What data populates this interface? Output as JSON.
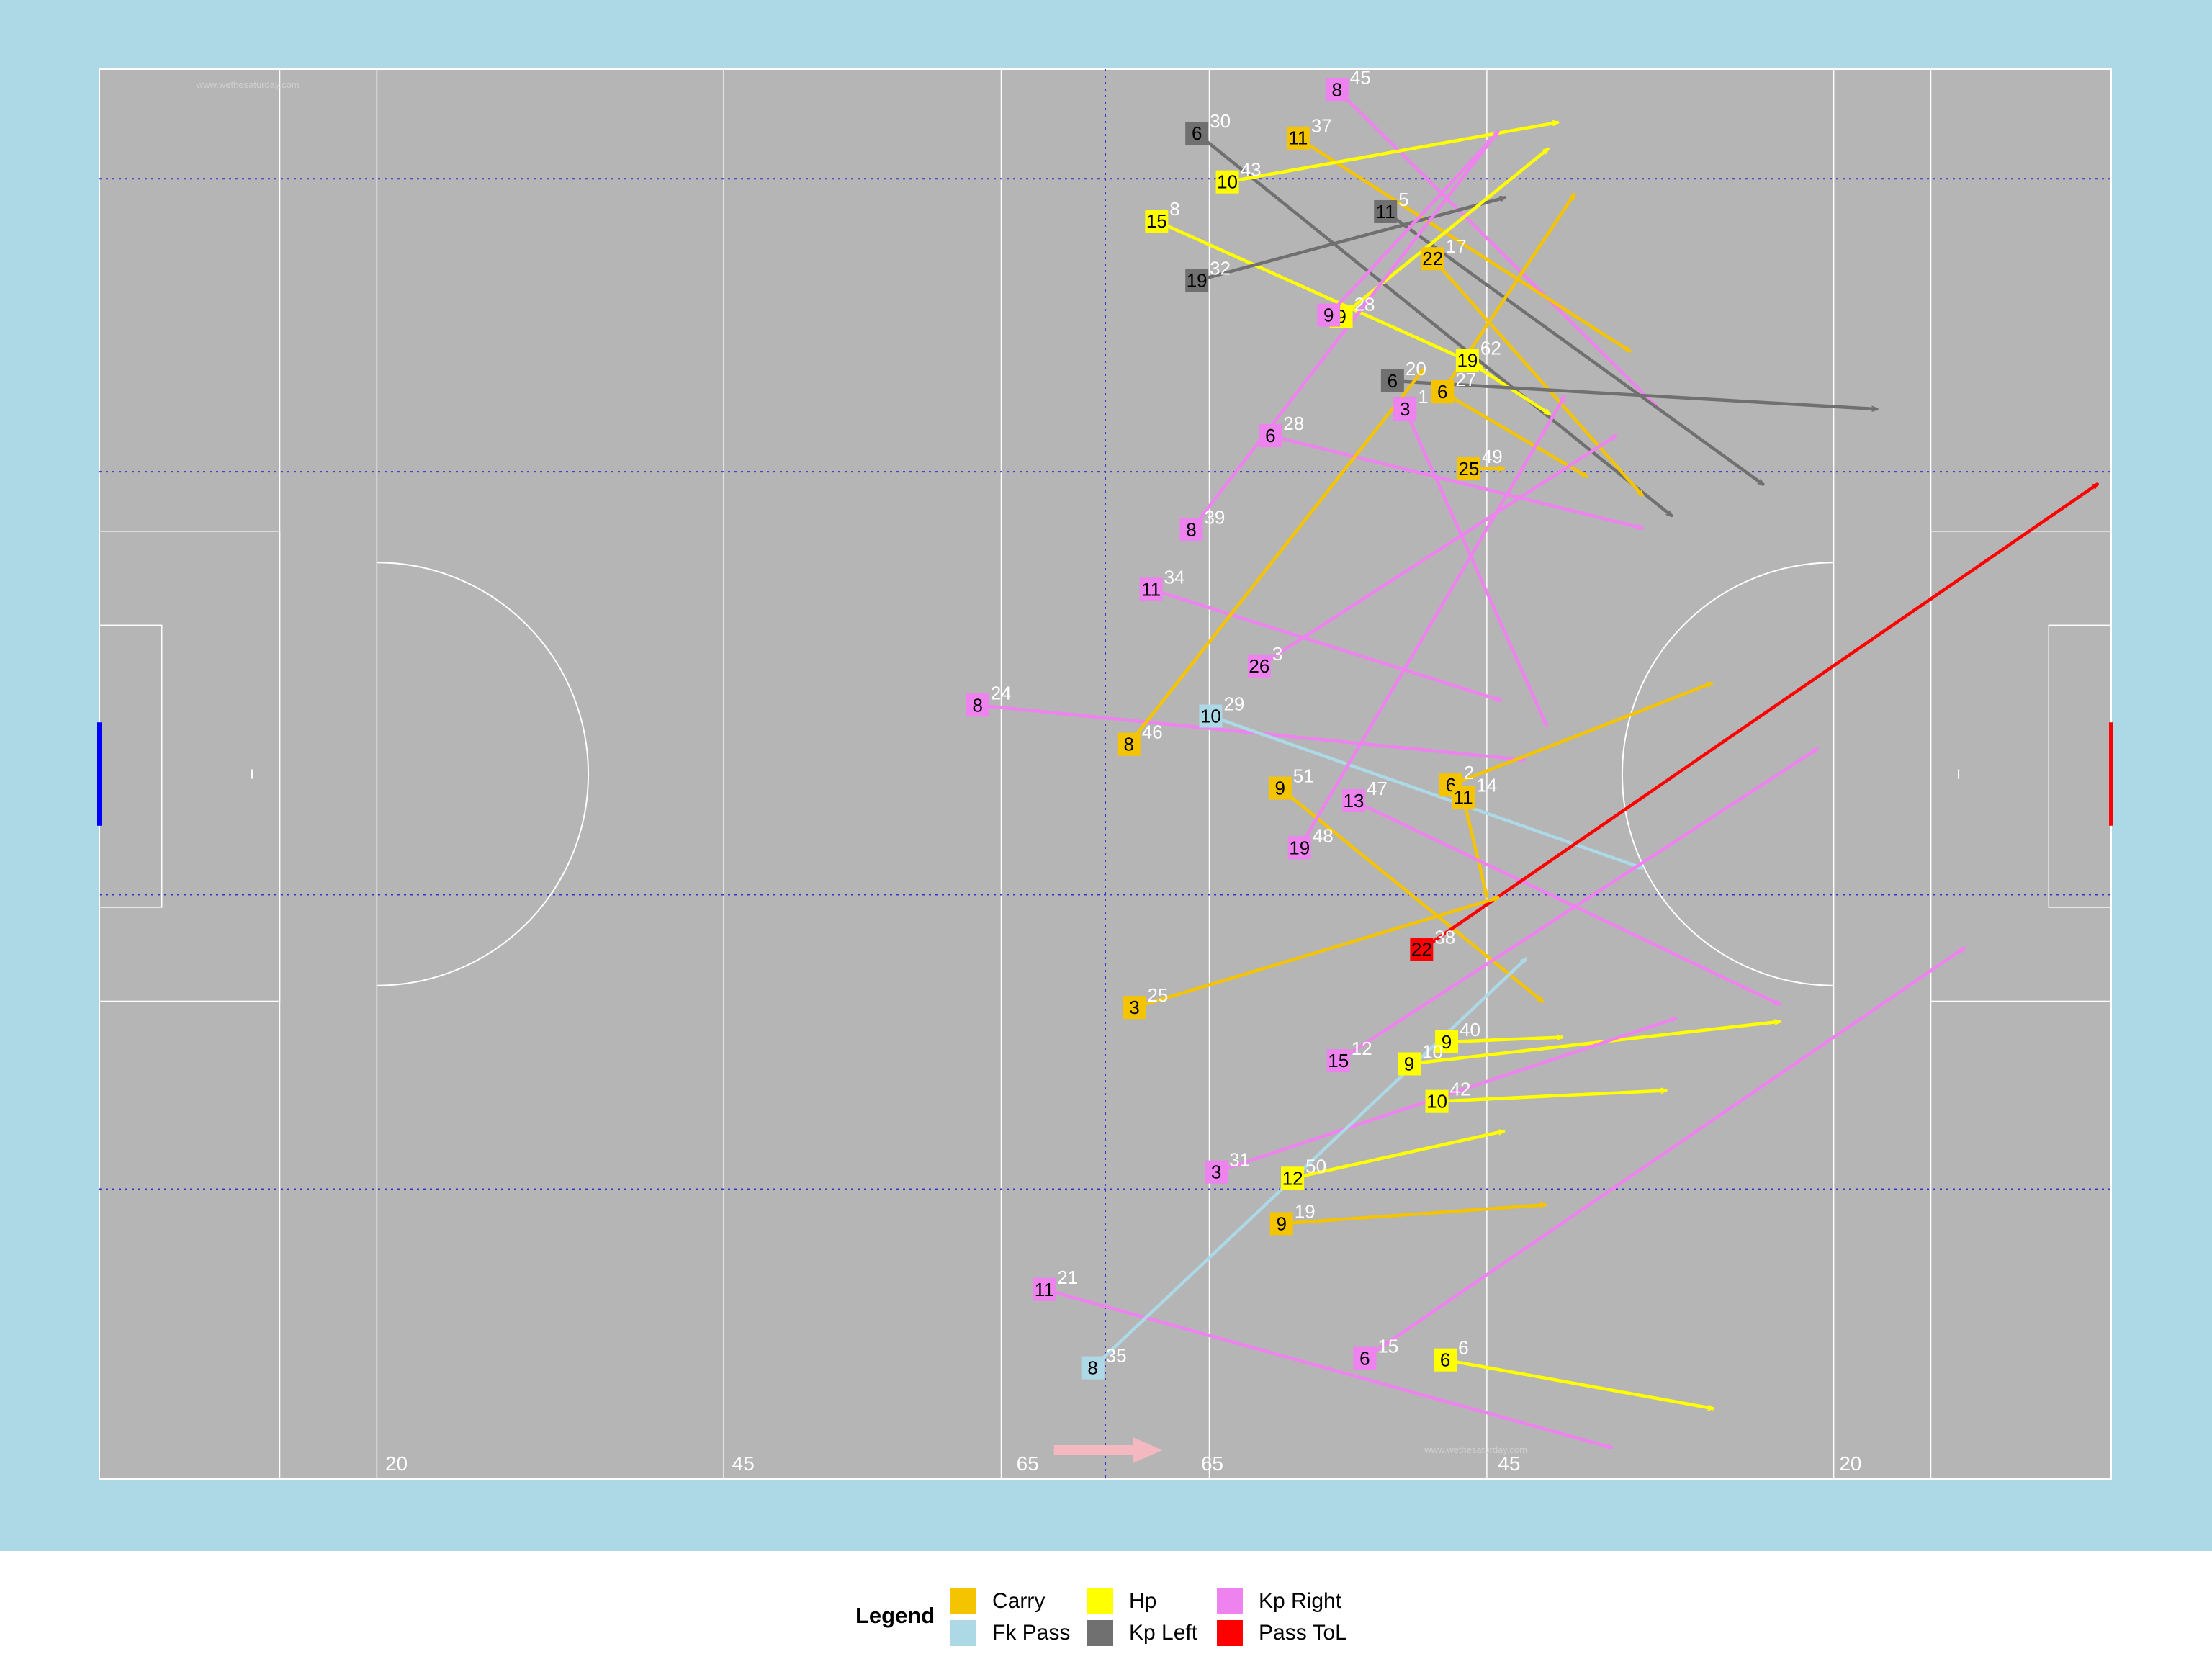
{
  "pitch": {
    "colors": {
      "background": "#add8e6",
      "field": "#b5b5b5",
      "lines": "#ffffff",
      "dotted": "#3333cc",
      "left_goal": "#0000ff",
      "right_goal": "#ff0000",
      "direction_arrow": "#f4b8c0"
    },
    "watermarks": [
      "www.wethesaturday.com",
      "www.wethesaturday.com"
    ],
    "distance_labels": [
      "20",
      "45",
      "65",
      "65",
      "45",
      "20"
    ]
  },
  "legend": {
    "title": "Legend",
    "items": [
      {
        "key": "carry",
        "label": "Carry",
        "color": "#f5c400"
      },
      {
        "key": "fk_pass",
        "label": "Fk Pass",
        "color": "#add8e6"
      },
      {
        "key": "hp",
        "label": "Hp",
        "color": "#ffff00"
      },
      {
        "key": "kp_left",
        "label": "Kp Left",
        "color": "#707070"
      },
      {
        "key": "kp_right",
        "label": "Kp Right",
        "color": "#ee82ee"
      },
      {
        "key": "pass_tol",
        "label": "Pass ToL",
        "color": "#ff0000"
      }
    ]
  },
  "chart_data": {
    "type": "scatter",
    "x_range": [
      0,
      145
    ],
    "y_range": [
      0,
      90
    ],
    "note_units": "pitch metres",
    "events": [
      {
        "type": "kp_right",
        "player": "8",
        "label": "45",
        "start": [
          89.2,
          88.7
        ],
        "end": [
          112.3,
          68.4
        ]
      },
      {
        "type": "kp_left",
        "player": "6",
        "label": "30",
        "start": [
          79.1,
          85.9
        ],
        "end": [
          113.3,
          61.5
        ]
      },
      {
        "type": "carry",
        "player": "11",
        "label": "37",
        "start": [
          86.4,
          85.6
        ],
        "end": [
          110.3,
          72.0
        ]
      },
      {
        "type": "hp",
        "player": "10",
        "label": "43",
        "start": [
          81.3,
          82.8
        ],
        "end": [
          105.1,
          86.6
        ]
      },
      {
        "type": "hp",
        "player": "15",
        "label": "8",
        "start": [
          76.2,
          80.3
        ],
        "end": [
          99.6,
          71.0
        ]
      },
      {
        "type": "kp_left",
        "player": "11",
        "label": "5",
        "start": [
          92.7,
          80.9
        ],
        "end": [
          119.9,
          63.5
        ]
      },
      {
        "type": "carry",
        "player": "22",
        "label": "17",
        "start": [
          96.1,
          77.9
        ],
        "end": [
          111.2,
          62.8
        ]
      },
      {
        "type": "kp_left",
        "player": "19",
        "label": "32",
        "start": [
          79.1,
          76.5
        ],
        "end": [
          101.3,
          81.8
        ]
      },
      {
        "type": "hp",
        "player": "9",
        "label": "28",
        "start": [
          89.5,
          74.2
        ],
        "end": [
          104.4,
          84.9
        ]
      },
      {
        "type": "kp_right",
        "player": "9",
        "label": "",
        "start": [
          88.6,
          74.3
        ],
        "end": [
          100.3,
          85.5
        ]
      },
      {
        "type": "hp",
        "player": "19",
        "label": "62",
        "start": [
          98.6,
          71.4
        ],
        "end": [
          104.5,
          68.0
        ]
      },
      {
        "type": "kp_left",
        "player": "6",
        "label": "20",
        "start": [
          93.2,
          70.1
        ],
        "end": [
          128.1,
          68.3
        ]
      },
      {
        "type": "carry",
        "player": "6",
        "label": "27",
        "start": [
          96.8,
          69.4
        ],
        "end": [
          107.2,
          64.0
        ]
      },
      {
        "type": "carry",
        "player": "6",
        "label": "",
        "start": [
          96.8,
          69.4
        ],
        "end": [
          106.3,
          82.0
        ]
      },
      {
        "type": "kp_right",
        "player": "3",
        "label": "1",
        "start": [
          94.1,
          68.3
        ],
        "end": [
          104.3,
          48.1
        ]
      },
      {
        "type": "kp_right",
        "player": "6",
        "label": "28",
        "start": [
          84.4,
          66.6
        ],
        "end": [
          111.2,
          60.7
        ]
      },
      {
        "type": "carry",
        "player": "25",
        "label": "49",
        "start": [
          98.7,
          64.5
        ],
        "end": [
          101.2,
          64.5
        ]
      },
      {
        "type": "kp_right",
        "player": "8",
        "label": "39",
        "start": [
          78.7,
          60.6
        ],
        "end": [
          100.8,
          86.0
        ]
      },
      {
        "type": "kp_right",
        "player": "11",
        "label": "34",
        "start": [
          75.8,
          56.8
        ],
        "end": [
          101.0,
          49.7
        ]
      },
      {
        "type": "kp_right",
        "player": "26",
        "label": "3",
        "start": [
          83.6,
          51.9
        ],
        "end": [
          109.3,
          66.6
        ]
      },
      {
        "type": "kp_right",
        "player": "8",
        "label": "24",
        "start": [
          63.3,
          49.4
        ],
        "end": [
          102.7,
          45.9
        ]
      },
      {
        "type": "carry",
        "player": "8",
        "label": "46",
        "start": [
          74.2,
          46.9
        ],
        "end": [
          95.4,
          70.8
        ]
      },
      {
        "type": "fk_pass",
        "player": "10",
        "label": "29",
        "start": [
          80.1,
          48.7
        ],
        "end": [
          111.2,
          39.0
        ]
      },
      {
        "type": "carry",
        "player": "6",
        "label": "2",
        "start": [
          97.4,
          44.3
        ],
        "end": [
          116.2,
          50.8
        ]
      },
      {
        "type": "carry",
        "player": "11",
        "label": "14",
        "start": [
          98.3,
          43.5
        ],
        "end": [
          100.0,
          37.2
        ]
      },
      {
        "type": "carry",
        "player": "9",
        "label": "51",
        "start": [
          85.1,
          44.1
        ],
        "end": [
          104.0,
          30.5
        ]
      },
      {
        "type": "kp_right",
        "player": "13",
        "label": "47",
        "start": [
          90.4,
          43.3
        ],
        "end": [
          121.1,
          30.3
        ]
      },
      {
        "type": "kp_right",
        "player": "19",
        "label": "48",
        "start": [
          86.5,
          40.3
        ],
        "end": [
          105.6,
          69.1
        ]
      },
      {
        "type": "pass_tol",
        "player": "22",
        "label": "38",
        "start": [
          95.3,
          33.8
        ],
        "end": [
          144.0,
          63.5
        ]
      },
      {
        "type": "carry",
        "player": "3",
        "label": "25",
        "start": [
          74.6,
          30.1
        ],
        "end": [
          100.8,
          37.1
        ]
      },
      {
        "type": "kp_right",
        "player": "15",
        "label": "12",
        "start": [
          89.3,
          26.7
        ],
        "end": [
          123.8,
          46.6
        ]
      },
      {
        "type": "hp",
        "player": "9",
        "label": "40",
        "start": [
          97.1,
          27.9
        ],
        "end": [
          105.4,
          28.2
        ]
      },
      {
        "type": "hp",
        "player": "9",
        "label": "10",
        "start": [
          94.4,
          26.5
        ],
        "end": [
          121.1,
          29.2
        ]
      },
      {
        "type": "hp",
        "player": "10",
        "label": "42",
        "start": [
          96.4,
          24.1
        ],
        "end": [
          112.9,
          24.8
        ]
      },
      {
        "type": "kp_right",
        "player": "3",
        "label": "31",
        "start": [
          80.5,
          19.6
        ],
        "end": [
          113.6,
          29.4
        ]
      },
      {
        "type": "hp",
        "player": "12",
        "label": "50",
        "start": [
          86.0,
          19.2
        ],
        "end": [
          101.2,
          22.2
        ]
      },
      {
        "type": "carry",
        "player": "9",
        "label": "19",
        "start": [
          85.2,
          16.3
        ],
        "end": [
          104.2,
          17.5
        ]
      },
      {
        "type": "kp_right",
        "player": "11",
        "label": "21",
        "start": [
          68.1,
          12.1
        ],
        "end": [
          109.0,
          2.0
        ]
      },
      {
        "type": "fk_pass",
        "player": "8",
        "label": "35",
        "start": [
          71.6,
          7.1
        ],
        "end": [
          102.8,
          33.2
        ]
      },
      {
        "type": "kp_right",
        "player": "6",
        "label": "15",
        "start": [
          91.2,
          7.7
        ],
        "end": [
          134.4,
          33.9
        ]
      },
      {
        "type": "hp",
        "player": "6",
        "label": "6",
        "start": [
          97.0,
          7.6
        ],
        "end": [
          116.3,
          4.5
        ]
      }
    ]
  }
}
